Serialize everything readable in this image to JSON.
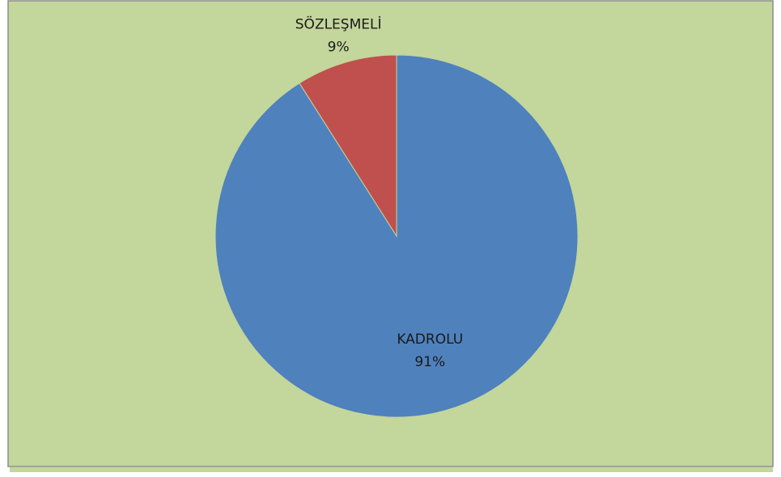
{
  "chart_data": {
    "type": "pie",
    "categories": [
      "KADROLU",
      "SÖZLEŞMELİ"
    ],
    "values": [
      91,
      9
    ],
    "value_labels": [
      "91%",
      "9%"
    ],
    "colors": [
      "#4f81bd",
      "#c0504d"
    ]
  }
}
